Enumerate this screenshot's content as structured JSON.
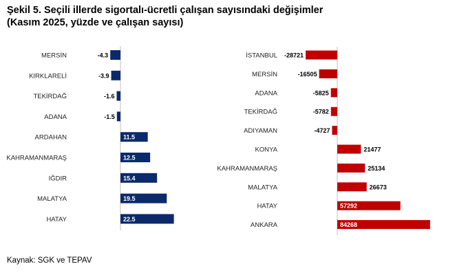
{
  "title": {
    "line1": "Şekil 5. Seçili illerde sigortalı-ücretli çalışan sayısındaki değişimler",
    "line2": "(Kasım 2025, yüzde ve çalışan sayısı)"
  },
  "source": "Kaynak: SGK ve TEPAV",
  "colors": {
    "left_bar": "#0b2a6b",
    "right_bar": "#c00000",
    "axis": "#bfbfbf"
  },
  "chart_data": [
    {
      "type": "bar",
      "orientation": "horizontal",
      "unit": "yüzde",
      "categories": [
        "MERSİN",
        "KIRKLARELİ",
        "TEKİRDAĞ",
        "ADANA",
        "ARDAHAN",
        "KAHRAMANMARAŞ",
        "IĞDIR",
        "MALATYA",
        "HATAY"
      ],
      "values": [
        -4.3,
        -3.9,
        -1.6,
        -1.5,
        11.5,
        12.5,
        15.4,
        19.5,
        22.5
      ],
      "labels": [
        "-4.3",
        "-3.9",
        "-1.6",
        "-1.5",
        "11.5",
        "12.5",
        "15.4",
        "19.5",
        "22.5"
      ],
      "xlim": [
        -5,
        25
      ],
      "grid": false,
      "legend": false
    },
    {
      "type": "bar",
      "orientation": "horizontal",
      "unit": "çalışan sayısı",
      "categories": [
        "İSTANBUL",
        "MERSİN",
        "ADANA",
        "TEKİRDAĞ",
        "ADIYAMAN",
        "KONYA",
        "KAHRAMANMARAŞ",
        "MALATYA",
        "HATAY",
        "ANKARA"
      ],
      "values": [
        -28721,
        -16505,
        -5825,
        -5782,
        -4727,
        21477,
        25134,
        26673,
        57292,
        84268
      ],
      "labels": [
        "-28721",
        "-16505",
        "-5825",
        "-5782",
        "-4727",
        "21477",
        "25134",
        "26673",
        "57292",
        "84268"
      ],
      "xlim": [
        -30000,
        85000
      ],
      "grid": false,
      "legend": false
    }
  ]
}
